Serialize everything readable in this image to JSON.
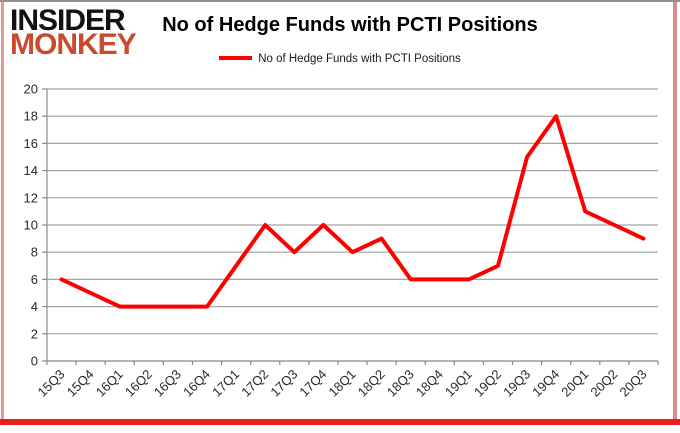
{
  "brand": {
    "line1": "INSIDER",
    "line2": "MONKEY",
    "line1_color": "#121212",
    "line2_color": "#cb4a2e"
  },
  "title": "No of Hedge Funds with PCTI Positions",
  "legend": {
    "label": "No of Hedge Funds with PCTI Positions",
    "color": "#fe0000"
  },
  "chart_data": {
    "type": "line",
    "title": "No of Hedge Funds with PCTI Positions",
    "xlabel": "",
    "ylabel": "",
    "categories": [
      "15Q3",
      "15Q4",
      "16Q1",
      "16Q2",
      "16Q3",
      "16Q4",
      "17Q1",
      "17Q2",
      "17Q3",
      "17Q4",
      "18Q1",
      "18Q2",
      "18Q3",
      "18Q4",
      "19Q1",
      "19Q2",
      "19Q3",
      "19Q4",
      "20Q1",
      "20Q2",
      "20Q3"
    ],
    "series": [
      {
        "name": "No of Hedge Funds with PCTI Positions",
        "color": "#fe0000",
        "values": [
          6,
          5,
          4,
          4,
          4,
          4,
          7,
          10,
          8,
          10,
          8,
          9,
          6,
          6,
          6,
          7,
          15,
          18,
          11,
          10,
          9
        ]
      }
    ],
    "ylim": [
      0,
      20
    ],
    "yticks": [
      0,
      2,
      4,
      6,
      8,
      10,
      12,
      14,
      16,
      18,
      20
    ],
    "grid": true,
    "legend_position": "top"
  },
  "colors": {
    "gridline": "#a3a3a3",
    "axis": "#898989",
    "tick_label": "#2b2b2b",
    "bottom_bar": "#ea1d1d"
  }
}
